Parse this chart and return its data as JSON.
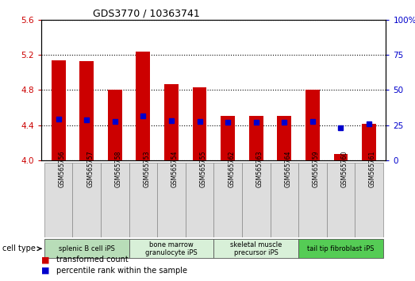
{
  "title": "GDS3770 / 10363741",
  "samples": [
    "GSM565756",
    "GSM565757",
    "GSM565758",
    "GSM565753",
    "GSM565754",
    "GSM565755",
    "GSM565762",
    "GSM565763",
    "GSM565764",
    "GSM565759",
    "GSM565760",
    "GSM565761"
  ],
  "bar_heights": [
    5.14,
    5.13,
    4.8,
    5.24,
    4.87,
    4.83,
    4.5,
    4.5,
    4.5,
    4.8,
    4.07,
    4.41
  ],
  "blue_markers": [
    4.47,
    4.46,
    4.44,
    4.5,
    4.45,
    4.44,
    4.43,
    4.43,
    4.43,
    4.44,
    4.37,
    4.41
  ],
  "ylim_left": [
    4.0,
    5.6
  ],
  "ylim_right": [
    0,
    100
  ],
  "yticks_left": [
    4.0,
    4.4,
    4.8,
    5.2,
    5.6
  ],
  "yticks_right": [
    0,
    25,
    50,
    75,
    100
  ],
  "cell_groups": [
    {
      "label": "splenic B cell iPS",
      "start": 0,
      "end": 3,
      "color": "#b8ddb8"
    },
    {
      "label": "bone marrow\ngranulocyte iPS",
      "start": 3,
      "end": 6,
      "color": "#d8f0d8"
    },
    {
      "label": "skeletal muscle\nprecursor iPS",
      "start": 6,
      "end": 9,
      "color": "#d8f0d8"
    },
    {
      "label": "tail tip fibroblast iPS",
      "start": 9,
      "end": 12,
      "color": "#55cc55"
    }
  ],
  "bar_color": "#cc0000",
  "blue_color": "#0000cc",
  "left_tick_color": "#cc0000",
  "right_tick_color": "#0000cc",
  "grid_color": "#000000",
  "background_color": "#ffffff",
  "cell_type_label": "cell type",
  "legend_items": [
    {
      "label": "transformed count",
      "color": "#cc0000"
    },
    {
      "label": "percentile rank within the sample",
      "color": "#0000cc"
    }
  ]
}
